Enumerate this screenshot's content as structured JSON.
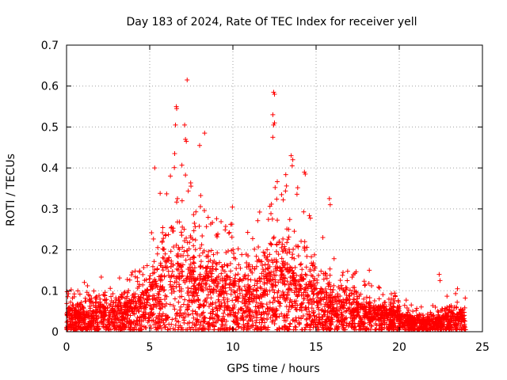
{
  "chart_data": {
    "type": "scatter",
    "title": "Day 183 of 2024, Rate Of TEC Index for receiver yell",
    "xlabel": "GPS time / hours",
    "ylabel": "ROTI / TECUs",
    "xlim": [
      0,
      25
    ],
    "ylim": [
      0,
      0.7
    ],
    "xticks": [
      0,
      5,
      10,
      15,
      20,
      25
    ],
    "yticks": [
      0,
      0.1,
      0.2,
      0.3,
      0.4,
      0.5,
      0.6,
      0.7
    ],
    "xtick_labels": [
      "0",
      "5",
      "10",
      "15",
      "20",
      "25"
    ],
    "ytick_labels": [
      "0",
      "0.1",
      "0.2",
      "0.3",
      "0.4",
      "0.5",
      "0.6",
      "0.7"
    ],
    "grid": true,
    "marker": "+",
    "series": [
      {
        "name": "ROTI",
        "color": "#ff0000",
        "envelope_hours": [
          0,
          0.5,
          1,
          2,
          3,
          4,
          5,
          5.5,
          6,
          6.5,
          7,
          7.5,
          8,
          8.5,
          9,
          9.5,
          10,
          10.5,
          11,
          11.5,
          12,
          12.5,
          13,
          13.5,
          14,
          14.5,
          15,
          15.5,
          16,
          17,
          18,
          19,
          20,
          21,
          22,
          23,
          24
        ],
        "envelope_max": [
          0.14,
          0.1,
          0.12,
          0.14,
          0.13,
          0.15,
          0.22,
          0.34,
          0.37,
          0.44,
          0.42,
          0.36,
          0.34,
          0.3,
          0.28,
          0.3,
          0.32,
          0.28,
          0.25,
          0.3,
          0.33,
          0.38,
          0.4,
          0.42,
          0.37,
          0.34,
          0.3,
          0.24,
          0.18,
          0.16,
          0.14,
          0.11,
          0.09,
          0.06,
          0.07,
          0.1,
          0.09
        ],
        "envelope_typical": [
          0.04,
          0.03,
          0.03,
          0.04,
          0.04,
          0.05,
          0.07,
          0.09,
          0.11,
          0.12,
          0.12,
          0.11,
          0.1,
          0.1,
          0.09,
          0.09,
          0.08,
          0.07,
          0.07,
          0.08,
          0.1,
          0.11,
          0.11,
          0.1,
          0.09,
          0.08,
          0.07,
          0.06,
          0.05,
          0.05,
          0.04,
          0.04,
          0.03,
          0.02,
          0.02,
          0.03,
          0.03
        ],
        "outliers": [
          {
            "x": 7.25,
            "y": 0.615
          },
          {
            "x": 6.6,
            "y": 0.55
          },
          {
            "x": 6.62,
            "y": 0.545
          },
          {
            "x": 7.1,
            "y": 0.505
          },
          {
            "x": 6.55,
            "y": 0.505
          },
          {
            "x": 7.15,
            "y": 0.47
          },
          {
            "x": 7.2,
            "y": 0.465
          },
          {
            "x": 8.3,
            "y": 0.485
          },
          {
            "x": 8.0,
            "y": 0.455
          },
          {
            "x": 12.45,
            "y": 0.585
          },
          {
            "x": 12.5,
            "y": 0.58
          },
          {
            "x": 12.4,
            "y": 0.53
          },
          {
            "x": 12.45,
            "y": 0.505
          },
          {
            "x": 12.5,
            "y": 0.51
          },
          {
            "x": 12.4,
            "y": 0.475
          },
          {
            "x": 5.3,
            "y": 0.4
          },
          {
            "x": 6.5,
            "y": 0.435
          },
          {
            "x": 13.5,
            "y": 0.43
          },
          {
            "x": 13.6,
            "y": 0.42
          },
          {
            "x": 14.3,
            "y": 0.39
          },
          {
            "x": 14.35,
            "y": 0.385
          },
          {
            "x": 15.8,
            "y": 0.325
          },
          {
            "x": 15.85,
            "y": 0.31
          },
          {
            "x": 18.2,
            "y": 0.15
          },
          {
            "x": 22.4,
            "y": 0.14
          },
          {
            "x": 22.45,
            "y": 0.125
          },
          {
            "x": 23.5,
            "y": 0.105
          }
        ]
      }
    ]
  }
}
